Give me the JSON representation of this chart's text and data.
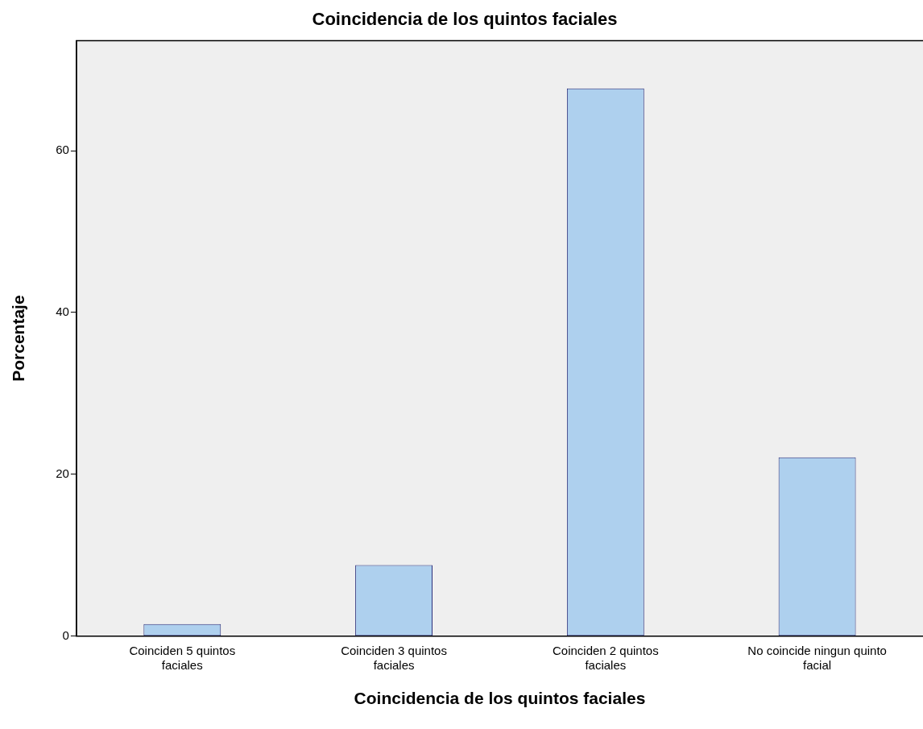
{
  "chart_data": {
    "type": "bar",
    "title": "Coincidencia de los quintos faciales",
    "xlabel": "Coincidencia de los quintos faciales",
    "ylabel": "Porcentaje",
    "categories": [
      "Coinciden 5 quintos faciales",
      "Coinciden 3 quintos faciales",
      "Coinciden 2 quintos faciales",
      "No coincide ningun quinto facial"
    ],
    "values": [
      1.5,
      8.8,
      67.7,
      22.1
    ],
    "color": "#aed0ee",
    "ylim": [
      0,
      73.6
    ],
    "yticks": [
      0,
      20,
      40,
      60
    ],
    "grid": false,
    "legend": false
  }
}
